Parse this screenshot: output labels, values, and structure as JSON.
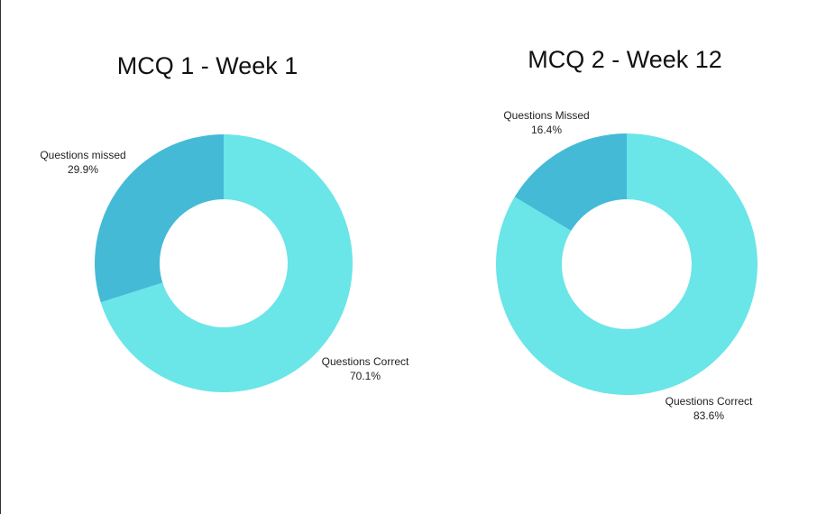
{
  "chart_data": [
    {
      "type": "pie",
      "title": "MCQ 1 - Week 1",
      "slices": [
        {
          "label": "Questions missed",
          "value": 29.9,
          "value_label": "29.9%",
          "color": "#44BAD6"
        },
        {
          "label": "Questions Correct",
          "value": 70.1,
          "value_label": "70.1%",
          "color": "#6AE5E8"
        }
      ],
      "donut": true,
      "legend": "none"
    },
    {
      "type": "pie",
      "title": "MCQ 2 - Week 12",
      "slices": [
        {
          "label": "Questions Missed",
          "value": 16.4,
          "value_label": "16.4%",
          "color": "#44BAD6"
        },
        {
          "label": "Questions Correct",
          "value": 83.6,
          "value_label": "83.6%",
          "color": "#6AE5E8"
        }
      ],
      "donut": true,
      "legend": "none"
    }
  ]
}
